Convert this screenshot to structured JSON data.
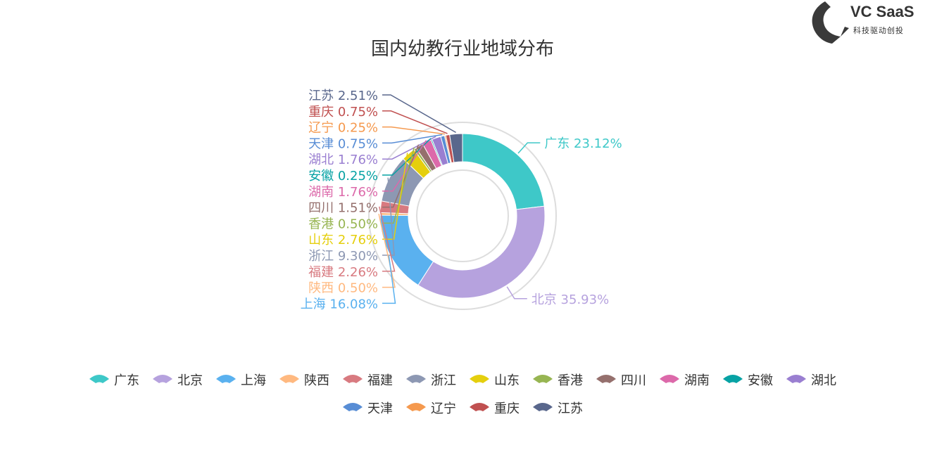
{
  "brand": {
    "name": "VC SaaS",
    "tagline": "科技驱动创投",
    "color": "#3a3a3a"
  },
  "chart_data": {
    "type": "pie",
    "variant": "donut",
    "title": "国内幼教行业地域分布",
    "legend_position": "bottom",
    "series": [
      {
        "name": "广东",
        "value": 23.12,
        "label": "广东 23.12%",
        "color": "#3ec8c8"
      },
      {
        "name": "北京",
        "value": 35.93,
        "label": "北京 35.93%",
        "color": "#b6a2de"
      },
      {
        "name": "上海",
        "value": 16.08,
        "label": "上海 16.08%",
        "color": "#5ab1ef"
      },
      {
        "name": "陕西",
        "value": 0.5,
        "label": "陕西 0.50%",
        "color": "#ffb980"
      },
      {
        "name": "福建",
        "value": 2.26,
        "label": "福建 2.26%",
        "color": "#d87a80"
      },
      {
        "name": "浙江",
        "value": 9.3,
        "label": "浙江 9.30%",
        "color": "#8d98b3"
      },
      {
        "name": "山东",
        "value": 2.76,
        "label": "山东 2.76%",
        "color": "#e5cf0d"
      },
      {
        "name": "香港",
        "value": 0.5,
        "label": "香港 0.50%",
        "color": "#97b552"
      },
      {
        "name": "四川",
        "value": 1.51,
        "label": "四川 1.51%",
        "color": "#95706d"
      },
      {
        "name": "湖南",
        "value": 1.76,
        "label": "湖南 1.76%",
        "color": "#dc69aa"
      },
      {
        "name": "安徽",
        "value": 0.25,
        "label": "安徽 0.25%",
        "color": "#07a2a4"
      },
      {
        "name": "湖北",
        "value": 1.76,
        "label": "湖北 1.76%",
        "color": "#9a7fd1"
      },
      {
        "name": "天津",
        "value": 0.75,
        "label": "天津 0.75%",
        "color": "#588dd5"
      },
      {
        "name": "辽宁",
        "value": 0.25,
        "label": "辽宁 0.25%",
        "color": "#f5994e"
      },
      {
        "name": "重庆",
        "value": 0.75,
        "label": "重庆 0.75%",
        "color": "#c05050"
      },
      {
        "name": "江苏",
        "value": 2.51,
        "label": "江苏 2.51%",
        "color": "#59678c"
      }
    ]
  }
}
